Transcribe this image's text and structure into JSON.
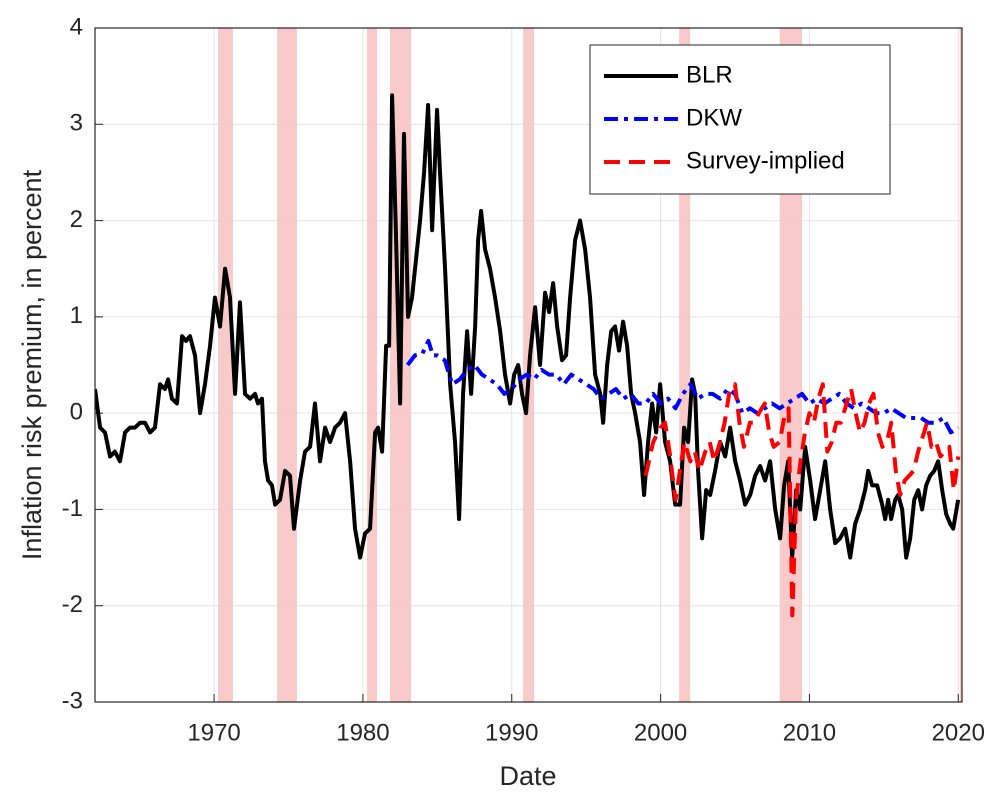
{
  "chart_data": {
    "type": "line",
    "xlabel": "Date",
    "ylabel": "Inflation risk premium, in percent",
    "xlim": [
      1962,
      2020.25
    ],
    "ylim": [
      -3,
      4
    ],
    "xticks": [
      1970,
      1980,
      1990,
      2000,
      2010,
      2020
    ],
    "yticks": [
      -3,
      -2,
      -1,
      0,
      1,
      2,
      3,
      4
    ],
    "grid": true,
    "legend": "upper right",
    "shade_color": "#f8c4c4",
    "shaded_periods": [
      {
        "start": 1970.27,
        "end": 1971.27
      },
      {
        "start": 1974.23,
        "end": 1975.57
      },
      {
        "start": 1980.28,
        "end": 1980.95
      },
      {
        "start": 1981.82,
        "end": 1983.24
      },
      {
        "start": 1990.76,
        "end": 1991.5
      },
      {
        "start": 2001.25,
        "end": 2001.99
      },
      {
        "start": 2008.0,
        "end": 2009.5
      },
      {
        "start": 2020.1,
        "end": 2020.25
      }
    ],
    "series": [
      {
        "name": "BLR",
        "color": "#000000",
        "dash": "solid",
        "x": [
          1962.0,
          1962.34,
          1962.67,
          1963.01,
          1963.34,
          1963.68,
          1964.02,
          1964.35,
          1964.69,
          1965.02,
          1965.36,
          1965.7,
          1966.03,
          1966.37,
          1966.7,
          1966.91,
          1967.17,
          1967.51,
          1967.85,
          1968.12,
          1968.38,
          1968.72,
          1969.06,
          1969.39,
          1969.73,
          1970.06,
          1970.4,
          1970.74,
          1971.07,
          1971.41,
          1971.74,
          1972.08,
          1972.42,
          1972.75,
          1972.95,
          1973.22,
          1973.42,
          1973.63,
          1973.89,
          1974.1,
          1974.43,
          1974.77,
          1975.1,
          1975.37,
          1975.78,
          1976.11,
          1976.45,
          1976.78,
          1977.12,
          1977.46,
          1977.79,
          1978.13,
          1978.46,
          1978.8,
          1979.14,
          1979.47,
          1979.81,
          1980.14,
          1980.48,
          1980.82,
          1981.02,
          1981.29,
          1981.56,
          1981.76,
          1981.96,
          1982.23,
          1982.5,
          1982.76,
          1983.03,
          1983.3,
          1983.57,
          1983.84,
          1984.11,
          1984.38,
          1984.65,
          1984.98,
          1985.18,
          1985.52,
          1985.86,
          1986.19,
          1986.46,
          1986.73,
          1987.0,
          1987.27,
          1987.54,
          1987.74,
          1987.94,
          1988.21,
          1988.54,
          1988.88,
          1989.22,
          1989.55,
          1989.89,
          1990.16,
          1990.43,
          1990.69,
          1990.96,
          1991.23,
          1991.57,
          1991.9,
          1992.24,
          1992.51,
          1992.78,
          1993.05,
          1993.38,
          1993.65,
          1993.92,
          1994.26,
          1994.59,
          1994.93,
          1995.26,
          1995.6,
          1995.94,
          1996.14,
          1996.41,
          1996.68,
          1996.94,
          1997.21,
          1997.48,
          1997.75,
          1998.02,
          1998.29,
          1998.62,
          1998.89,
          1999.16,
          1999.43,
          1999.7,
          1999.97,
          2000.3,
          2000.64,
          2000.98,
          2001.31,
          2001.58,
          2001.85,
          2002.12,
          2002.32,
          2002.52,
          2002.79,
          2003.06,
          2003.33,
          2003.66,
          2004.0,
          2004.34,
          2004.67,
          2005.01,
          2005.34,
          2005.68,
          2006.02,
          2006.35,
          2006.69,
          2007.02,
          2007.36,
          2007.7,
          2008.03,
          2008.3,
          2008.57,
          2008.84,
          2009.11,
          2009.38,
          2009.71,
          2010.05,
          2010.38,
          2010.72,
          2011.06,
          2011.39,
          2011.73,
          2012.06,
          2012.4,
          2012.74,
          2013.07,
          2013.41,
          2013.74,
          2013.95,
          2014.21,
          2014.55,
          2014.89,
          2015.09,
          2015.29,
          2015.49,
          2015.76,
          2015.96,
          2016.23,
          2016.5,
          2016.77,
          2017.04,
          2017.31,
          2017.57,
          2017.84,
          2018.11,
          2018.38,
          2018.65,
          2018.92,
          2019.19,
          2019.46,
          2019.66,
          2019.99
        ],
        "values": [
          0.25,
          -0.15,
          -0.2,
          -0.45,
          -0.4,
          -0.5,
          -0.2,
          -0.15,
          -0.15,
          -0.1,
          -0.1,
          -0.2,
          -0.15,
          0.3,
          0.25,
          0.35,
          0.15,
          0.1,
          0.8,
          0.75,
          0.8,
          0.6,
          0.0,
          0.3,
          0.7,
          1.2,
          0.9,
          1.5,
          1.2,
          0.2,
          1.15,
          0.2,
          0.15,
          0.2,
          0.1,
          0.15,
          -0.5,
          -0.7,
          -0.75,
          -0.95,
          -0.9,
          -0.6,
          -0.65,
          -1.2,
          -0.7,
          -0.4,
          -0.35,
          0.1,
          -0.5,
          -0.15,
          -0.3,
          -0.15,
          -0.1,
          0.0,
          -0.5,
          -1.2,
          -1.5,
          -1.25,
          -1.2,
          -0.2,
          -0.15,
          -0.4,
          0.7,
          0.7,
          3.3,
          1.8,
          0.1,
          2.9,
          1.0,
          1.2,
          1.6,
          2.0,
          2.5,
          3.2,
          1.9,
          3.15,
          2.5,
          1.5,
          0.3,
          -0.3,
          -1.1,
          0.2,
          0.85,
          0.2,
          0.9,
          1.8,
          2.1,
          1.7,
          1.5,
          1.2,
          0.85,
          0.4,
          0.1,
          0.4,
          0.5,
          0.2,
          0.0,
          0.6,
          1.1,
          0.5,
          1.25,
          1.05,
          1.35,
          0.9,
          0.55,
          0.6,
          1.2,
          1.8,
          2.0,
          1.7,
          1.2,
          0.4,
          0.2,
          -0.1,
          0.5,
          0.85,
          0.9,
          0.65,
          0.95,
          0.7,
          0.2,
          0.0,
          -0.3,
          -0.85,
          -0.3,
          0.1,
          -0.2,
          0.3,
          -0.3,
          -0.5,
          -0.95,
          -0.95,
          -0.15,
          -0.3,
          0.35,
          0.2,
          -0.6,
          -1.3,
          -0.8,
          -0.85,
          -0.6,
          -0.3,
          -0.45,
          -0.15,
          -0.5,
          -0.7,
          -0.95,
          -0.85,
          -0.65,
          -0.55,
          -0.7,
          -0.5,
          -1.0,
          -1.3,
          -0.75,
          -0.5,
          -1.5,
          -0.8,
          -1.0,
          -0.35,
          -0.7,
          -1.1,
          -0.8,
          -0.5,
          -1.0,
          -1.35,
          -1.3,
          -1.2,
          -1.5,
          -1.15,
          -1.0,
          -0.8,
          -0.6,
          -0.75,
          -0.75,
          -0.95,
          -1.1,
          -0.9,
          -1.1,
          -0.9,
          -0.85,
          -1.0,
          -1.5,
          -1.3,
          -0.9,
          -0.8,
          -1.0,
          -0.75,
          -0.65,
          -0.6,
          -0.5,
          -0.8,
          -1.05,
          -1.15,
          -1.2,
          -0.9
        ]
      },
      {
        "name": "DKW",
        "color": "#0000ff",
        "dash": "dashdot",
        "x": [
          1983,
          1983.5,
          1984,
          1984.4,
          1984.7,
          1985,
          1985.5,
          1986,
          1986.5,
          1987,
          1987.5,
          1988,
          1988.5,
          1989,
          1989.5,
          1990,
          1990.5,
          1991,
          1991.5,
          1992,
          1992.5,
          1993,
          1993.5,
          1994,
          1994.5,
          1995,
          1995.5,
          1996,
          1996.5,
          1997,
          1997.5,
          1998,
          1998.5,
          1999,
          1999.5,
          2000,
          2000.5,
          2001,
          2001.5,
          2002,
          2002.5,
          2003,
          2003.5,
          2004,
          2004.5,
          2005,
          2005.5,
          2006,
          2006.5,
          2007,
          2007.5,
          2008,
          2008.5,
          2009,
          2009.5,
          2010,
          2010.5,
          2011,
          2011.5,
          2012,
          2012.5,
          2013,
          2013.5,
          2014,
          2014.5,
          2015,
          2015.5,
          2016,
          2016.5,
          2017,
          2017.5,
          2018,
          2018.5,
          2019,
          2019.5,
          2020
        ],
        "values": [
          0.5,
          0.6,
          0.62,
          0.75,
          0.6,
          0.6,
          0.55,
          0.3,
          0.35,
          0.45,
          0.5,
          0.4,
          0.35,
          0.3,
          0.2,
          0.25,
          0.35,
          0.4,
          0.35,
          0.45,
          0.4,
          0.4,
          0.3,
          0.4,
          0.35,
          0.3,
          0.25,
          0.15,
          0.2,
          0.25,
          0.15,
          0.2,
          0.1,
          0.1,
          0.2,
          0.1,
          0.15,
          0.05,
          0.2,
          0.3,
          0.15,
          0.2,
          0.2,
          0.15,
          0.25,
          0.2,
          0.0,
          0.05,
          0.0,
          0.05,
          0.1,
          0.05,
          0.1,
          0.15,
          0.2,
          0.1,
          0.15,
          0.1,
          0.15,
          0.2,
          0.1,
          0.05,
          0.1,
          0.05,
          0.0,
          0.0,
          0.05,
          0.0,
          -0.05,
          -0.05,
          -0.05,
          -0.1,
          -0.1,
          -0.05,
          -0.2,
          -0.15
        ]
      },
      {
        "name": "Survey-implied",
        "color": "#ff0000",
        "dash": "dashed",
        "x": [
          1999.0,
          1999.5,
          2000,
          2000.3,
          2000.6,
          2001,
          2001.3,
          2001.6,
          2002,
          2002.3,
          2002.6,
          2003,
          2003.3,
          2003.6,
          2004,
          2004.3,
          2004.6,
          2005,
          2005.3,
          2005.6,
          2006,
          2006.3,
          2006.6,
          2007,
          2007.3,
          2007.6,
          2008,
          2008.3,
          2008.6,
          2008.85,
          2009.1,
          2009.4,
          2009.7,
          2010,
          2010.3,
          2010.6,
          2010.9,
          2011.2,
          2011.5,
          2011.8,
          2012.1,
          2012.5,
          2012.8,
          2013.1,
          2013.4,
          2013.7,
          2014.0,
          2014.3,
          2014.6,
          2014.9,
          2015.2,
          2015.5,
          2015.8,
          2016.1,
          2016.4,
          2016.7,
          2017,
          2017.3,
          2017.6,
          2017.9,
          2018.2,
          2018.5,
          2018.8,
          2019.1,
          2019.4,
          2019.7,
          2020
        ],
        "values": [
          -0.65,
          -0.3,
          -0.15,
          -0.1,
          -0.4,
          -0.9,
          -0.6,
          -0.3,
          -0.5,
          -0.4,
          -0.6,
          -0.4,
          -0.3,
          -0.5,
          -0.3,
          -0.1,
          0.2,
          0.3,
          -0.1,
          -0.35,
          -0.1,
          -0.1,
          0.0,
          0.1,
          -0.2,
          -0.35,
          -0.3,
          -0.05,
          0.05,
          -2.1,
          -0.9,
          -0.5,
          -0.2,
          0.0,
          -0.1,
          0.15,
          0.3,
          -0.4,
          -0.3,
          -0.1,
          -0.1,
          0.1,
          0.25,
          0.0,
          -0.2,
          -0.1,
          0.1,
          0.2,
          -0.2,
          -0.35,
          -0.3,
          -0.1,
          -0.6,
          -0.85,
          -0.7,
          -0.65,
          -0.6,
          -0.4,
          -0.25,
          -0.1,
          -0.35,
          -0.3,
          -0.45,
          -0.4,
          -0.35,
          -0.8,
          -0.45
        ]
      }
    ]
  }
}
